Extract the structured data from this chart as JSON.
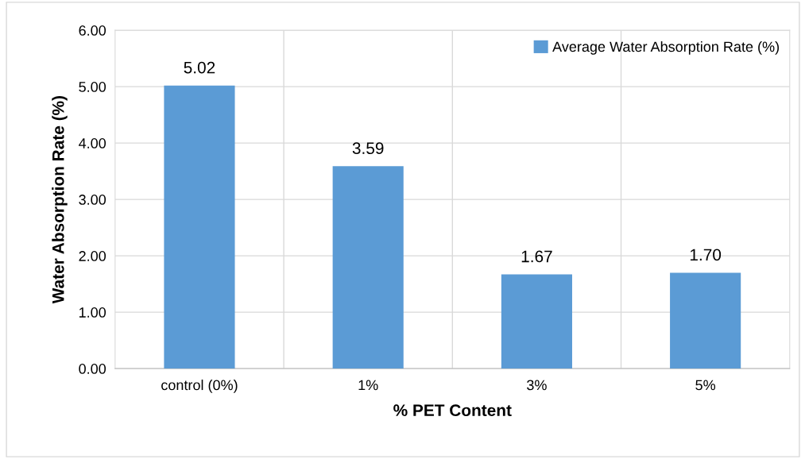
{
  "chart_data": {
    "type": "bar",
    "xlabel": "% PET Content",
    "ylabel": "Water Absorption Rate (%)",
    "categories": [
      "control (0%)",
      "1%",
      "3%",
      "5%"
    ],
    "series": [
      {
        "name": "Average Water Absorption Rate (%)",
        "color": "#5b9bd5",
        "values": [
          5.02,
          3.59,
          1.67,
          1.7
        ],
        "value_labels": [
          "5.02",
          "3.59",
          "1.67",
          "1.70"
        ]
      }
    ],
    "ylim": [
      0,
      6
    ],
    "yticks": [
      {
        "value": 0,
        "label": "0.00"
      },
      {
        "value": 1,
        "label": "1.00"
      },
      {
        "value": 2,
        "label": "2.00"
      },
      {
        "value": 3,
        "label": "3.00"
      },
      {
        "value": 4,
        "label": "4.00"
      },
      {
        "value": 5,
        "label": "5.00"
      },
      {
        "value": 6,
        "label": "6.00"
      }
    ],
    "grid": true,
    "legend": "top right"
  }
}
